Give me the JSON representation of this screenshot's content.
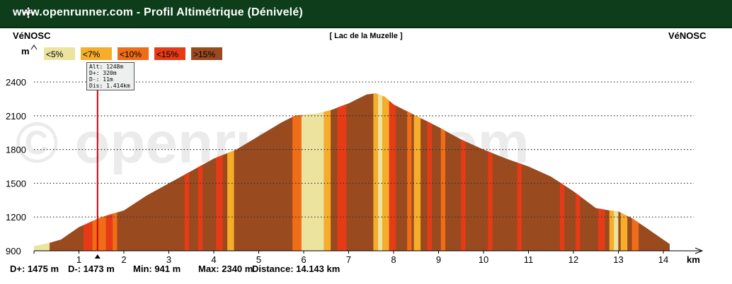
{
  "window": {
    "title": "www.openrunner.com - Profil Altimétrique (Dénivelé)"
  },
  "header": {
    "start_label": "VéNOSC",
    "end_label": "VéNOSC",
    "center_title": "[ Lac de la Muzelle ]"
  },
  "legend": [
    {
      "label": "<5%",
      "color": "#ebe39e"
    },
    {
      "label": "<7%",
      "color": "#f5ad2a"
    },
    {
      "label": "<10%",
      "color": "#f06d17"
    },
    {
      "label": "<15%",
      "color": "#e63b17"
    },
    {
      "label": ">15%",
      "color": "#9a4a1f"
    }
  ],
  "tooltip": {
    "lines": [
      "Alt: 1248m",
      "D+: 320m",
      "D-: 11m",
      "Dis: 1.414km"
    ]
  },
  "watermark": "© openrunner.com",
  "footer": {
    "dplus": "D+: 1475 m",
    "dminus": "D-: 1473 m",
    "min": "Min: 941 m",
    "max": "Max: 2340 m",
    "distance": "Distance: 14.143 km"
  },
  "chart_data": {
    "type": "area",
    "title": "[ Lac de la Muzelle ]",
    "xlabel": "km",
    "ylabel": "m",
    "xlim": [
      0,
      14.143
    ],
    "ylim": [
      900,
      2400
    ],
    "xticks": [
      0,
      1,
      2,
      3,
      4,
      5,
      6,
      7,
      8,
      9,
      10,
      11,
      12,
      13,
      14
    ],
    "yticks": [
      900,
      1200,
      1500,
      1800,
      2100,
      2400
    ],
    "grid": true,
    "cursor_km": 1.414,
    "series": [
      {
        "x": [
          0,
          0.3,
          0.6,
          1.0,
          1.5,
          2.0,
          2.5,
          3.0,
          3.5,
          4.0,
          4.5,
          5.0,
          5.5,
          5.8,
          6.0,
          6.3,
          6.6,
          7.0,
          7.4,
          7.6,
          7.8,
          8.0,
          8.5,
          9.0,
          9.5,
          10.0,
          10.5,
          11.0,
          11.5,
          12.0,
          12.5,
          12.8,
          13.0,
          13.3,
          13.6,
          14.0,
          14.143
        ],
        "y": [
          941,
          965,
          1000,
          1110,
          1200,
          1260,
          1390,
          1500,
          1610,
          1720,
          1800,
          1920,
          2040,
          2100,
          2110,
          2120,
          2150,
          2210,
          2290,
          2300,
          2270,
          2200,
          2100,
          2000,
          1890,
          1800,
          1720,
          1650,
          1560,
          1430,
          1280,
          1260,
          1250,
          1190,
          1110,
          1000,
          960
        ]
      }
    ],
    "bands": [
      {
        "x0": 0.0,
        "x1": 0.35,
        "cls": 1
      },
      {
        "x0": 0.35,
        "x1": 1.1,
        "cls": 5
      },
      {
        "x0": 1.1,
        "x1": 1.3,
        "cls": 4
      },
      {
        "x0": 1.3,
        "x1": 1.6,
        "cls": 3
      },
      {
        "x0": 1.6,
        "x1": 1.75,
        "cls": 4
      },
      {
        "x0": 1.75,
        "x1": 1.85,
        "cls": 3
      },
      {
        "x0": 3.35,
        "x1": 3.45,
        "cls": 4
      },
      {
        "x0": 3.65,
        "x1": 3.75,
        "cls": 4
      },
      {
        "x0": 4.05,
        "x1": 4.2,
        "cls": 4
      },
      {
        "x0": 4.3,
        "x1": 4.45,
        "cls": 2
      },
      {
        "x0": 5.75,
        "x1": 5.95,
        "cls": 3
      },
      {
        "x0": 5.95,
        "x1": 6.45,
        "cls": 1
      },
      {
        "x0": 6.45,
        "x1": 6.6,
        "cls": 2
      },
      {
        "x0": 6.75,
        "x1": 6.95,
        "cls": 4
      },
      {
        "x0": 7.55,
        "x1": 7.65,
        "cls": 2
      },
      {
        "x0": 7.65,
        "x1": 7.75,
        "cls": 1
      },
      {
        "x0": 7.75,
        "x1": 7.9,
        "cls": 2
      },
      {
        "x0": 7.9,
        "x1": 8.05,
        "cls": 4
      },
      {
        "x0": 8.3,
        "x1": 8.4,
        "cls": 3
      },
      {
        "x0": 8.45,
        "x1": 8.6,
        "cls": 2
      },
      {
        "x0": 8.75,
        "x1": 8.85,
        "cls": 4
      },
      {
        "x0": 9.05,
        "x1": 9.15,
        "cls": 3
      },
      {
        "x0": 9.5,
        "x1": 9.6,
        "cls": 4
      },
      {
        "x0": 10.1,
        "x1": 10.2,
        "cls": 4
      },
      {
        "x0": 10.75,
        "x1": 10.85,
        "cls": 4
      },
      {
        "x0": 11.7,
        "x1": 11.8,
        "cls": 4
      },
      {
        "x0": 12.05,
        "x1": 12.15,
        "cls": 4
      },
      {
        "x0": 12.55,
        "x1": 12.7,
        "cls": 4
      },
      {
        "x0": 12.8,
        "x1": 12.9,
        "cls": 2
      },
      {
        "x0": 12.9,
        "x1": 13.0,
        "cls": 1
      },
      {
        "x0": 13.05,
        "x1": 13.2,
        "cls": 2
      },
      {
        "x0": 13.3,
        "x1": 13.45,
        "cls": 3
      }
    ]
  }
}
